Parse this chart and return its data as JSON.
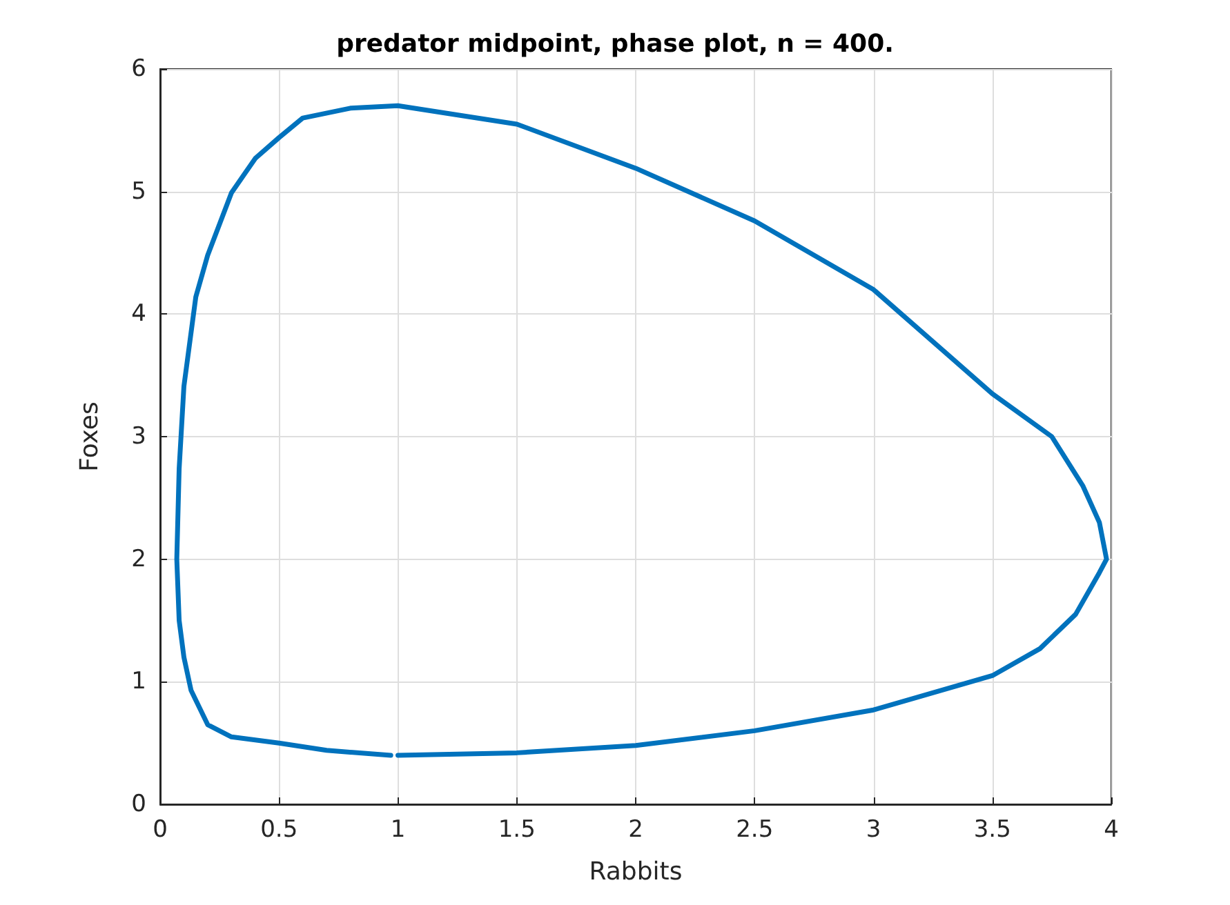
{
  "chart_data": {
    "type": "line",
    "title": "predator midpoint, phase plot, n = 400.",
    "xlabel": "Rabbits",
    "ylabel": "Foxes",
    "series": [
      {
        "color": "#0072bd",
        "x": [
          1,
          1.5,
          2,
          2.5,
          3,
          3.5,
          3.7,
          3.85,
          3.95,
          3.98,
          3.95,
          3.88,
          3.75,
          3.5,
          3,
          2.5,
          2,
          1.5,
          1,
          0.8,
          0.6,
          0.5,
          0.4,
          0.3,
          0.2,
          0.15,
          0.1,
          0.08,
          0.07,
          0.08,
          0.1,
          0.13,
          0.2,
          0.3,
          0.5,
          0.7,
          0.97
        ],
        "values": [
          0.4,
          0.42,
          0.48,
          0.6,
          0.77,
          1.05,
          1.27,
          1.55,
          1.89,
          2,
          2.3,
          2.6,
          3,
          3.35,
          4.2,
          4.76,
          5.19,
          5.55,
          5.7,
          5.68,
          5.6,
          5.44,
          5.27,
          4.99,
          4.48,
          4.14,
          3.41,
          2.74,
          2,
          1.5,
          1.2,
          0.93,
          0.65,
          0.55,
          0.5,
          0.44,
          0.4
        ]
      }
    ],
    "xlim": [
      0,
      4
    ],
    "xticks": [
      0,
      0.5,
      1,
      1.5,
      2,
      2.5,
      3,
      3.5,
      4
    ],
    "ylim": [
      0,
      6
    ],
    "yticks": [
      0,
      1,
      2,
      3,
      4,
      5,
      6
    ],
    "grid": true
  }
}
